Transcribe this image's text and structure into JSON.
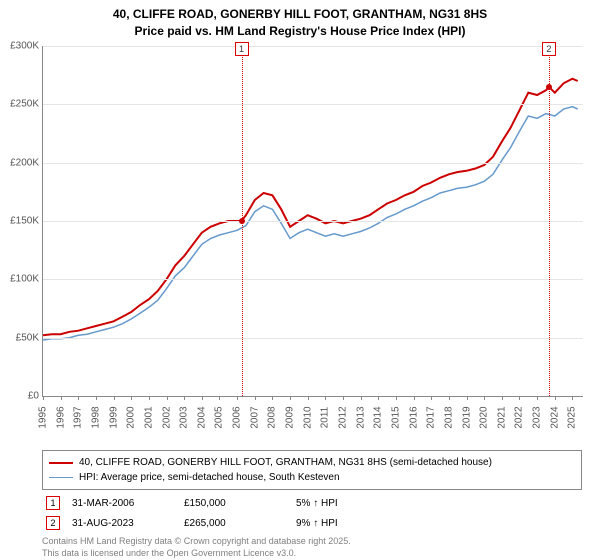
{
  "title_line1": "40, CLIFFE ROAD, GONERBY HILL FOOT, GRANTHAM, NG31 8HS",
  "title_line2": "Price paid vs. HM Land Registry's House Price Index (HPI)",
  "chart": {
    "type": "line",
    "xlim": [
      1995,
      2025.6
    ],
    "ylim": [
      0,
      300000
    ],
    "ytick_step": 50000,
    "ytick_labels": [
      "£0",
      "£50K",
      "£100K",
      "£150K",
      "£200K",
      "£250K",
      "£300K"
    ],
    "xticks": [
      1995,
      1996,
      1997,
      1998,
      1999,
      2000,
      2001,
      2002,
      2003,
      2004,
      2005,
      2006,
      2007,
      2008,
      2009,
      2010,
      2011,
      2012,
      2013,
      2014,
      2015,
      2016,
      2017,
      2018,
      2019,
      2020,
      2021,
      2022,
      2023,
      2024,
      2025
    ],
    "background_color": "#ffffff",
    "grid_color": "#e5e5e5",
    "axis_color": "#888888",
    "series": [
      {
        "name": "price_paid",
        "label": "40, CLIFFE ROAD, GONERBY HILL FOOT, GRANTHAM, NG31 8HS (semi-detached house)",
        "color": "#cc0000",
        "line_width": 2,
        "data": [
          [
            1995,
            52000
          ],
          [
            1995.5,
            53000
          ],
          [
            1996,
            53000
          ],
          [
            1996.5,
            55000
          ],
          [
            1997,
            56000
          ],
          [
            1997.5,
            58000
          ],
          [
            1998,
            60000
          ],
          [
            1998.5,
            62000
          ],
          [
            1999,
            64000
          ],
          [
            1999.5,
            68000
          ],
          [
            2000,
            72000
          ],
          [
            2000.5,
            78000
          ],
          [
            2001,
            83000
          ],
          [
            2001.5,
            90000
          ],
          [
            2002,
            100000
          ],
          [
            2002.5,
            112000
          ],
          [
            2003,
            120000
          ],
          [
            2003.5,
            130000
          ],
          [
            2004,
            140000
          ],
          [
            2004.5,
            145000
          ],
          [
            2005,
            148000
          ],
          [
            2005.5,
            150000
          ],
          [
            2006,
            150000
          ],
          [
            2006.25,
            150000
          ],
          [
            2006.5,
            155000
          ],
          [
            2007,
            168000
          ],
          [
            2007.5,
            174000
          ],
          [
            2008,
            172000
          ],
          [
            2008.5,
            160000
          ],
          [
            2009,
            145000
          ],
          [
            2009.5,
            150000
          ],
          [
            2010,
            155000
          ],
          [
            2010.5,
            152000
          ],
          [
            2011,
            148000
          ],
          [
            2011.5,
            150000
          ],
          [
            2012,
            148000
          ],
          [
            2012.5,
            150000
          ],
          [
            2013,
            152000
          ],
          [
            2013.5,
            155000
          ],
          [
            2014,
            160000
          ],
          [
            2014.5,
            165000
          ],
          [
            2015,
            168000
          ],
          [
            2015.5,
            172000
          ],
          [
            2016,
            175000
          ],
          [
            2016.5,
            180000
          ],
          [
            2017,
            183000
          ],
          [
            2017.5,
            187000
          ],
          [
            2018,
            190000
          ],
          [
            2018.5,
            192000
          ],
          [
            2019,
            193000
          ],
          [
            2019.5,
            195000
          ],
          [
            2020,
            198000
          ],
          [
            2020.5,
            205000
          ],
          [
            2021,
            218000
          ],
          [
            2021.5,
            230000
          ],
          [
            2022,
            245000
          ],
          [
            2022.5,
            260000
          ],
          [
            2023,
            258000
          ],
          [
            2023.5,
            262000
          ],
          [
            2023.67,
            265000
          ],
          [
            2024,
            260000
          ],
          [
            2024.5,
            268000
          ],
          [
            2025,
            272000
          ],
          [
            2025.3,
            270000
          ]
        ]
      },
      {
        "name": "hpi",
        "label": "HPI: Average price, semi-detached house, South Kesteven",
        "color": "#6699cc",
        "line_width": 1.5,
        "data": [
          [
            1995,
            48000
          ],
          [
            1995.5,
            49000
          ],
          [
            1996,
            49000
          ],
          [
            1996.5,
            50000
          ],
          [
            1997,
            52000
          ],
          [
            1997.5,
            53000
          ],
          [
            1998,
            55000
          ],
          [
            1998.5,
            57000
          ],
          [
            1999,
            59000
          ],
          [
            1999.5,
            62000
          ],
          [
            2000,
            66000
          ],
          [
            2000.5,
            71000
          ],
          [
            2001,
            76000
          ],
          [
            2001.5,
            82000
          ],
          [
            2002,
            92000
          ],
          [
            2002.5,
            103000
          ],
          [
            2003,
            110000
          ],
          [
            2003.5,
            120000
          ],
          [
            2004,
            130000
          ],
          [
            2004.5,
            135000
          ],
          [
            2005,
            138000
          ],
          [
            2005.5,
            140000
          ],
          [
            2006,
            142000
          ],
          [
            2006.5,
            146000
          ],
          [
            2007,
            158000
          ],
          [
            2007.5,
            163000
          ],
          [
            2008,
            160000
          ],
          [
            2008.5,
            148000
          ],
          [
            2009,
            135000
          ],
          [
            2009.5,
            140000
          ],
          [
            2010,
            143000
          ],
          [
            2010.5,
            140000
          ],
          [
            2011,
            137000
          ],
          [
            2011.5,
            139000
          ],
          [
            2012,
            137000
          ],
          [
            2012.5,
            139000
          ],
          [
            2013,
            141000
          ],
          [
            2013.5,
            144000
          ],
          [
            2014,
            148000
          ],
          [
            2014.5,
            153000
          ],
          [
            2015,
            156000
          ],
          [
            2015.5,
            160000
          ],
          [
            2016,
            163000
          ],
          [
            2016.5,
            167000
          ],
          [
            2017,
            170000
          ],
          [
            2017.5,
            174000
          ],
          [
            2018,
            176000
          ],
          [
            2018.5,
            178000
          ],
          [
            2019,
            179000
          ],
          [
            2019.5,
            181000
          ],
          [
            2020,
            184000
          ],
          [
            2020.5,
            190000
          ],
          [
            2021,
            202000
          ],
          [
            2021.5,
            213000
          ],
          [
            2022,
            227000
          ],
          [
            2022.5,
            240000
          ],
          [
            2023,
            238000
          ],
          [
            2023.5,
            242000
          ],
          [
            2024,
            240000
          ],
          [
            2024.5,
            246000
          ],
          [
            2025,
            248000
          ],
          [
            2025.3,
            246000
          ]
        ]
      }
    ],
    "sale_markers": [
      {
        "id": "1",
        "x": 2006.25,
        "y": 150000
      },
      {
        "id": "2",
        "x": 2023.67,
        "y": 265000
      }
    ]
  },
  "legend": {
    "series1": "40, CLIFFE ROAD, GONERBY HILL FOOT, GRANTHAM, NG31 8HS (semi-detached house)",
    "series2": "HPI: Average price, semi-detached house, South Kesteven"
  },
  "sales": [
    {
      "badge": "1",
      "date": "31-MAR-2006",
      "price": "£150,000",
      "pct": "5%",
      "arrow": "↑",
      "suffix": "HPI"
    },
    {
      "badge": "2",
      "date": "31-AUG-2023",
      "price": "£265,000",
      "pct": "9%",
      "arrow": "↑",
      "suffix": "HPI"
    }
  ],
  "footnote_line1": "Contains HM Land Registry data © Crown copyright and database right 2025.",
  "footnote_line2": "This data is licensed under the Open Government Licence v3.0.",
  "colors": {
    "price_paid": "#cc0000",
    "hpi": "#6699cc",
    "marker_border": "#d00000",
    "sale_dot": "#cc0000"
  }
}
